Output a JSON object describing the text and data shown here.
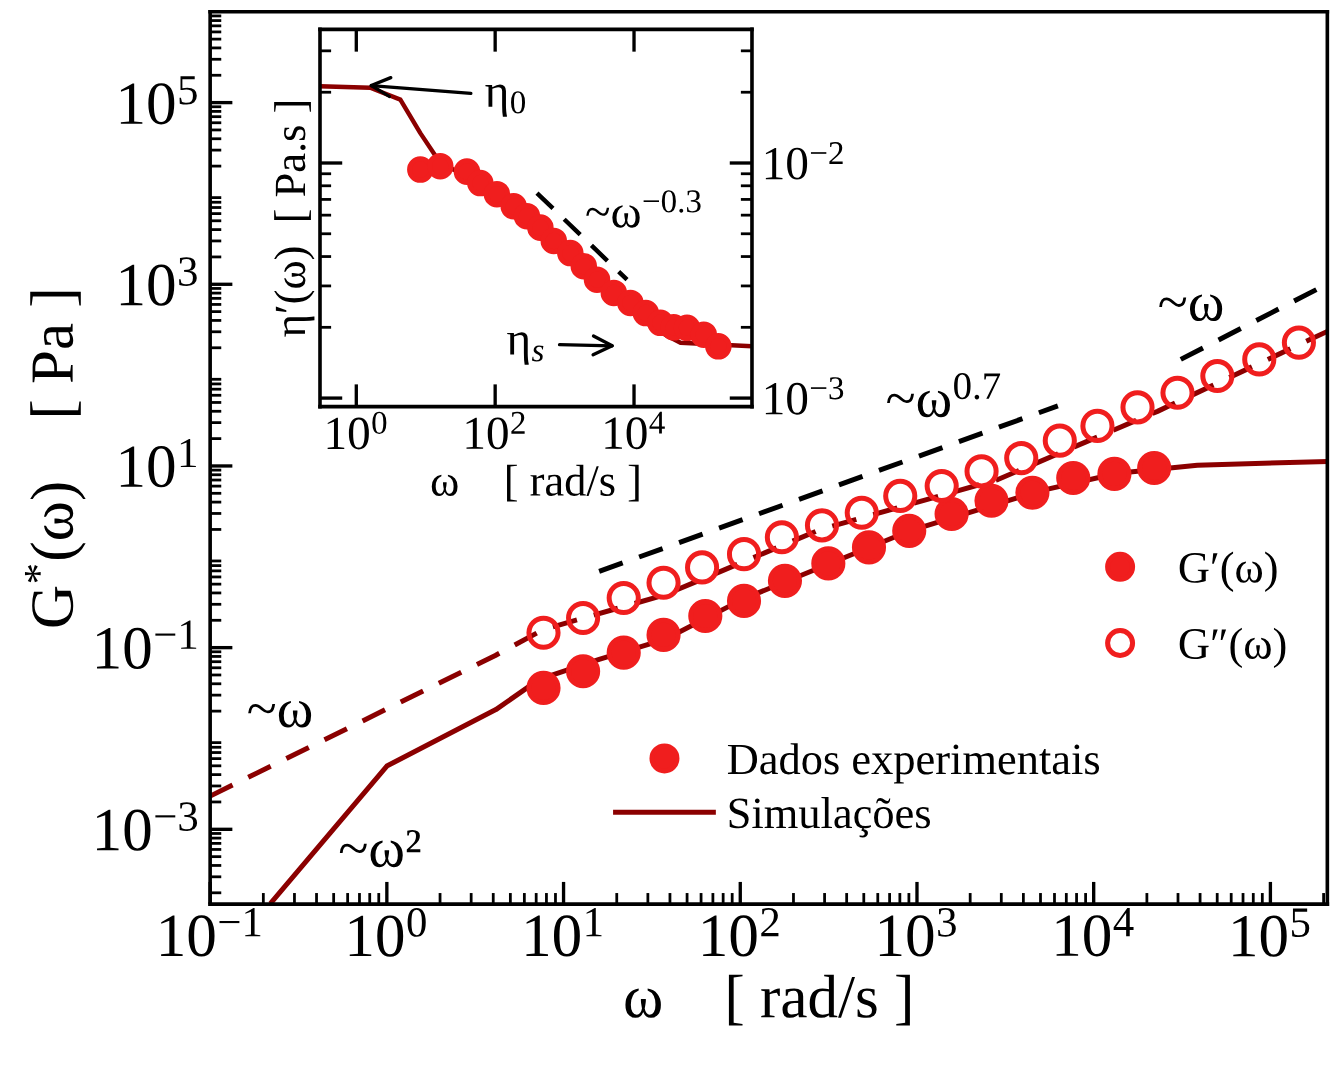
{
  "chart_data": [
    {
      "type": "scatter",
      "log": "xy",
      "xlabel": "ω    [ rad/s ]",
      "ylabel": "G$^{*}$(ω)    [ Pa ]",
      "xlim": [
        0.1,
        210000
      ],
      "ylim": [
        0.00015,
        1000000
      ],
      "xticks": [
        {
          "value": 0.1,
          "label": "10$^{−1}$"
        },
        {
          "value": 1,
          "label": "10$^{0}$"
        },
        {
          "value": 10,
          "label": "10$^{1}$"
        },
        {
          "value": 100,
          "label": "10$^{2}$"
        },
        {
          "value": 1000,
          "label": "10$^{3}$"
        },
        {
          "value": 10000,
          "label": "10$^{4}$"
        },
        {
          "value": 100000,
          "label": "10$^{5}$"
        }
      ],
      "yticks": [
        {
          "value": 0.001,
          "label": "10$^{−3}$"
        },
        {
          "value": 0.1,
          "label": "10$^{−1}$"
        },
        {
          "value": 10,
          "label": "10$^{1}$"
        },
        {
          "value": 1000,
          "label": "10$^{3}$"
        },
        {
          "value": 100000,
          "label": "10$^{5}$"
        }
      ],
      "grid": false,
      "legend": "right",
      "series": [
        {
          "name": "G′(ω)",
          "marker": "circle",
          "color": "#f01e1e",
          "x": [
            7.7,
            12.9,
            21.9,
            36.8,
            63.4,
            105,
            179,
            315,
            535,
            904,
            1570,
            2640,
            4500,
            7660,
            13100,
            22000
          ],
          "values": [
            0.036,
            0.055,
            0.088,
            0.138,
            0.223,
            0.327,
            0.544,
            0.845,
            1.27,
            1.93,
            2.96,
            4.14,
            5.07,
            7.38,
            8.17,
            9.5
          ]
        },
        {
          "name": "G″(ω)",
          "marker": "open circle",
          "color": "#f01e1e",
          "x": [
            7.7,
            12.9,
            21.9,
            36.8,
            60.8,
            105,
            172,
            290,
            487,
            804,
            1380,
            2320,
            3890,
            6430,
            10500,
            17700,
            29800,
            50100,
            86500,
            145000
          ],
          "values": [
            0.146,
            0.212,
            0.352,
            0.518,
            0.764,
            1.07,
            1.64,
            2.22,
            3.05,
            4.68,
            6.02,
            8.73,
            12.2,
            19.0,
            27.6,
            44.2,
            64.0,
            97.9,
            149,
            228
          ]
        },
        {
          "type": "line",
          "line_style": "solid",
          "color": "#8b0000",
          "x": [
            0.224,
            1.0,
            4.14,
            7.28,
            15.9,
            37.4,
            103,
            891,
            4830,
            13650,
            38600,
            210000
          ],
          "values": [
            0.00016,
            0.00497,
            0.0208,
            0.0447,
            0.0741,
            0.123,
            0.34,
            1.9,
            5.25,
            8.3,
            10.2,
            11.2
          ]
        },
        {
          "type": "line",
          "line_style": "dashed",
          "color": "#8b0000",
          "x": [
            0.1,
            4.11,
            7.67,
            37.4,
            284,
            2870,
            22960,
            210000
          ],
          "values": [
            0.00232,
            0.082,
            0.158,
            0.381,
            2.0,
            7.1,
            39.9,
            303
          ]
        },
        {
          "type": "line",
          "line_style": "dashed",
          "color": "#000000",
          "x": [
            15.9,
            6270
          ],
          "values": [
            0.69,
            45.8
          ]
        },
        {
          "type": "line",
          "line_style": "dashed",
          "color": "#000000",
          "x": [
            31100,
            200000
          ],
          "values": [
            149,
            960
          ]
        }
      ],
      "annotations": [
        "~ω",
        "~ω²",
        "~ω$^{0.7}$",
        "~ω",
        "Dados experimentais",
        "Simulações"
      ]
    },
    {
      "type": "scatter",
      "log": "xy",
      "xlabel": "ω    [ rad/s ]",
      "ylabel": "η′(ω)  [ Pa.s ]",
      "xlim": [
        0.3,
        500000
      ],
      "ylim": [
        0.00092,
        0.037
      ],
      "xticks": [
        {
          "value": 1,
          "label": "10$^{0}$"
        },
        {
          "value": 100,
          "label": "10$^{2}$"
        },
        {
          "value": 10000,
          "label": "10$^{4}$"
        }
      ],
      "yticks": [
        {
          "value": 0.001,
          "label": "10$^{−3}$"
        },
        {
          "value": 0.01,
          "label": "10$^{−2}$"
        }
      ],
      "grid": false,
      "series": [
        {
          "type": "line",
          "line_style": "solid",
          "color": "#8b0000",
          "x": [
            0.303,
            1.59,
            4.31,
            8.36,
            16.2,
            39.2,
            360,
            3280,
            12400,
            29900,
            46700,
            500000
          ],
          "values": [
            0.0212,
            0.0209,
            0.0186,
            0.0134,
            0.01,
            0.00879,
            0.00574,
            0.00309,
            0.00216,
            0.00184,
            0.00172,
            0.00166
          ]
        },
        {
          "marker": "circle",
          "color": "#f01e1e",
          "x": [
            8.36,
            16.2,
            39.2,
            61.2,
            106,
            185,
            287,
            448,
            699,
            1210,
            1890,
            2930,
            5120,
            8870,
            14800,
            24000,
            37400,
            58000,
            101000,
            164000
          ],
          "values": [
            0.00938,
            0.00969,
            0.00919,
            0.00822,
            0.00737,
            0.00654,
            0.00594,
            0.00531,
            0.00466,
            0.00414,
            0.00364,
            0.00319,
            0.0028,
            0.00254,
            0.0023,
            0.00209,
            0.002,
            0.00199,
            0.00186,
            0.00166
          ]
        },
        {
          "type": "line",
          "line_style": "dashed",
          "color": "#000000",
          "x": [
            400,
            7930
          ],
          "values": [
            0.00745,
            0.00319
          ]
        }
      ],
      "annotations": [
        "η$_{0}$",
        "η$_{s}$",
        "~ω$^{−0.3}$"
      ]
    }
  ]
}
